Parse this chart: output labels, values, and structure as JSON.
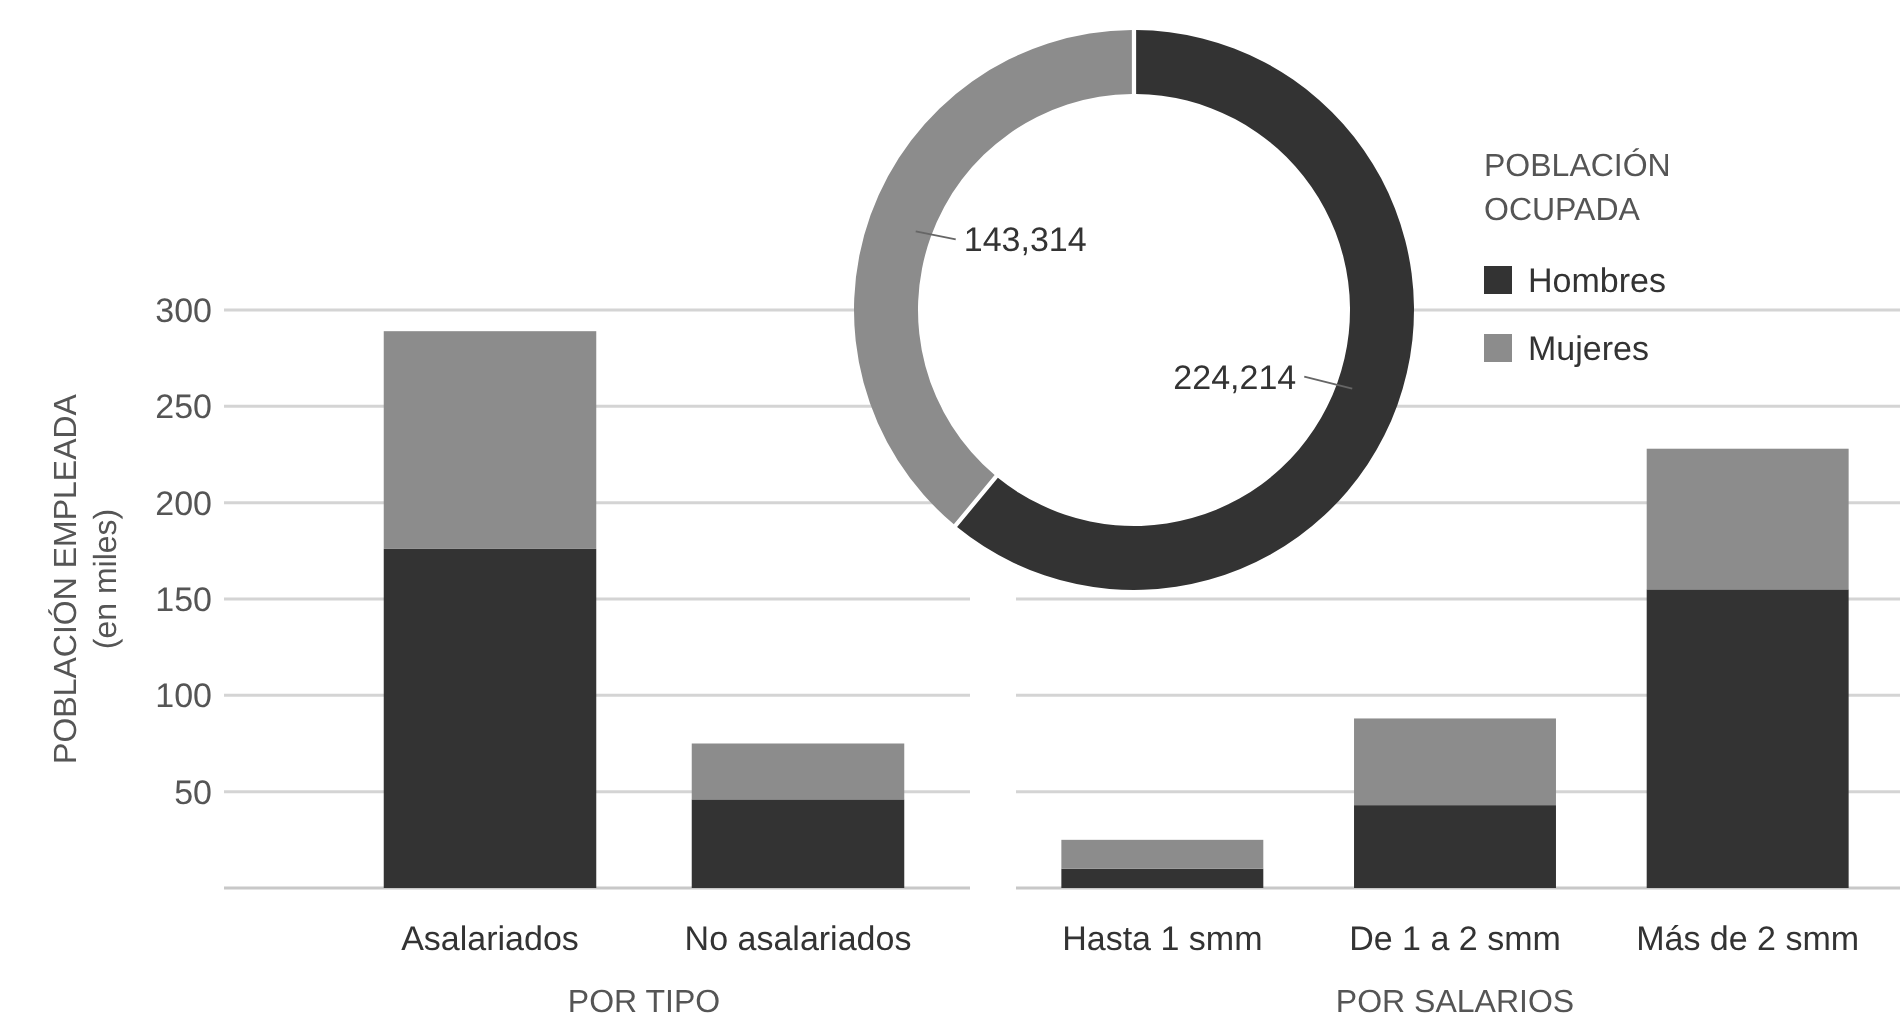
{
  "chart_data": [
    {
      "type": "bar",
      "ylabel": "POBLACIÓN EMPLEADA (en miles)",
      "xlabel": "POR TIPO",
      "categories": [
        "Asalariados",
        "No asalariados"
      ],
      "stacked": true,
      "ylim": [
        0,
        300
      ],
      "yticks": [
        50,
        100,
        150,
        200,
        250,
        300
      ],
      "grid": "y",
      "series": [
        {
          "color": "#333333",
          "values": [
            176,
            46
          ]
        },
        {
          "color": "#8c8c8c",
          "values": [
            113,
            29
          ]
        }
      ]
    },
    {
      "type": "bar",
      "xlabel": "POR SALARIOS",
      "categories": [
        "Hasta 1 smm",
        "De 1 a 2 smm",
        "Más de 2 smm"
      ],
      "stacked": true,
      "ylim": [
        0,
        300
      ],
      "yticks": [
        50,
        100,
        150,
        200,
        250,
        300
      ],
      "grid": "y",
      "tick_labels": "x",
      "series": [
        {
          "color": "#333333",
          "values": [
            10,
            43,
            155
          ]
        },
        {
          "color": "#8c8c8c",
          "values": [
            15,
            45,
            73
          ]
        }
      ]
    },
    {
      "type": "donut",
      "categories": [
        "Hombres",
        "Mujeres"
      ],
      "values": [
        224214,
        143314
      ],
      "colors": [
        "#333333",
        "#8c8c8c"
      ],
      "legend": "right",
      "legend_title": "POBLACIÓN OCUPADA",
      "value_labels": [
        "224,214",
        "143,314"
      ]
    }
  ]
}
